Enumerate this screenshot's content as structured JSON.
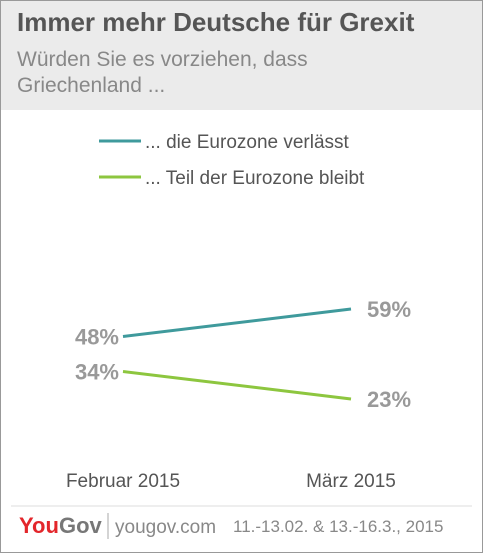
{
  "chart_data": {
    "type": "line",
    "title": "Immer mehr Deutsche für Grexit",
    "subtitle": "Würden Sie es vorziehen, dass Griechenland ...",
    "categories": [
      "Februar 2015",
      "März 2015"
    ],
    "series": [
      {
        "name": "... die Eurozone verlässt",
        "color": "#3f9a9c",
        "values": [
          48,
          59
        ],
        "value_labels": [
          "48%",
          "59%"
        ]
      },
      {
        "name": "... Teil der Eurozone bleibt",
        "color": "#8dc63f",
        "values": [
          34,
          23
        ],
        "value_labels": [
          "34%",
          "23%"
        ]
      }
    ],
    "footer": {
      "logo_you": "You",
      "logo_gov": "Gov",
      "site": "yougov.com",
      "dates": "11.-13.02. & 13.-16.3., 2015"
    }
  }
}
